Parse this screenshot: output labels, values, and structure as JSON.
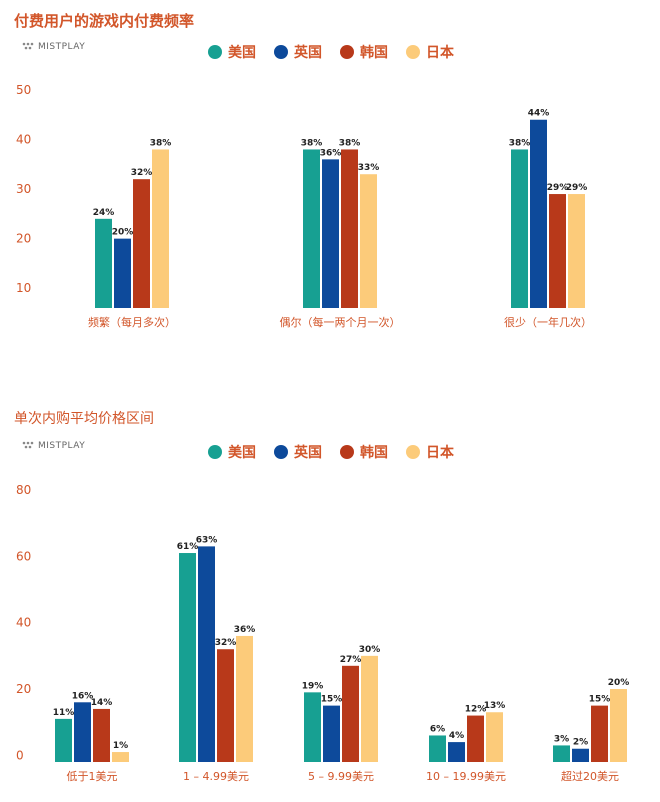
{
  "brand": "MISTPLAY",
  "colors": {
    "us": "#17a092",
    "uk": "#0d4a9b",
    "kr": "#b8391a",
    "jp": "#fccb7a",
    "accent": "#d2562a"
  },
  "chart_data": [
    {
      "type": "bar",
      "title": "付费用户的游戏内付费频率",
      "categories": [
        "频繁（每月多次）",
        "偶尔（每一两个月一次）",
        "很少（一年几次）"
      ],
      "series": [
        {
          "name": "美国",
          "values": [
            24,
            38,
            38
          ],
          "labels": [
            "24%",
            "38%",
            "38%"
          ]
        },
        {
          "name": "英国",
          "values": [
            20,
            36,
            44
          ],
          "labels": [
            "20%",
            "36%",
            "44%"
          ]
        },
        {
          "name": "韩国",
          "values": [
            32,
            38,
            29
          ],
          "labels": [
            "32%",
            "38%",
            "29%"
          ]
        },
        {
          "name": "日本",
          "values": [
            38,
            33,
            29
          ],
          "labels": [
            "38%",
            "33%",
            "29%"
          ]
        }
      ],
      "yticks": [
        "10",
        "20",
        "30",
        "40",
        "50"
      ],
      "ylim": [
        6,
        50
      ],
      "legend": "top-center"
    },
    {
      "type": "bar",
      "title": "单次内购平均价格区间",
      "categories": [
        "低于1美元",
        "1 – 4.99美元",
        "5 – 9.99美元",
        "10 – 19.99美元",
        "超过20美元"
      ],
      "series": [
        {
          "name": "美国",
          "values": [
            11,
            61,
            19,
            6,
            3
          ],
          "labels": [
            "11%",
            "61%",
            "19%",
            "6%",
            "3%"
          ]
        },
        {
          "name": "英国",
          "values": [
            16,
            63,
            15,
            4,
            2
          ],
          "labels": [
            "16%",
            "63%",
            "15%",
            "4%",
            "2%"
          ]
        },
        {
          "name": "韩国",
          "values": [
            14,
            32,
            27,
            12,
            15
          ],
          "labels": [
            "14%",
            "32%",
            "27%",
            "12%",
            "15%"
          ]
        },
        {
          "name": "日本",
          "values": [
            1,
            36,
            30,
            13,
            20
          ],
          "labels": [
            "1%",
            "36%",
            "30%",
            "13%",
            "20%"
          ]
        }
      ],
      "yticks": [
        "0",
        "20",
        "40",
        "60",
        "80"
      ],
      "ylim": [
        -2,
        80
      ],
      "legend": "top-center"
    }
  ]
}
